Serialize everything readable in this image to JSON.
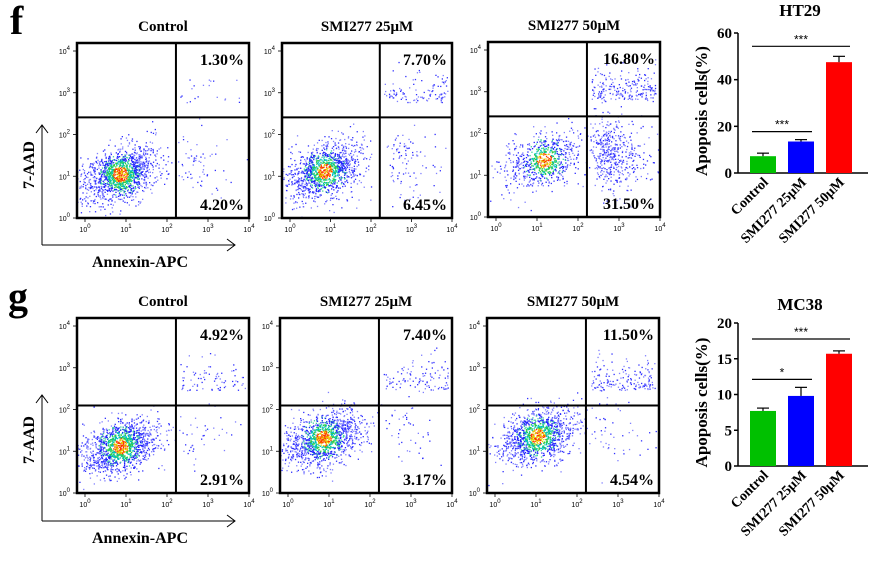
{
  "figure": {
    "panels": [
      {
        "label": "f",
        "cell_line": "HT29"
      },
      {
        "label": "g",
        "cell_line": "MC38"
      }
    ],
    "flow_axis": {
      "x_label": "Annexin-APC",
      "y_label": "7-AAD",
      "ticks": [
        "10^0",
        "10^1",
        "10^2",
        "10^3",
        "10^4"
      ]
    }
  },
  "chart_data": [
    {
      "type": "scatter",
      "panel": "f",
      "title": "Control",
      "xlabel": "Annexin-APC",
      "ylabel": "7-AAD",
      "scale": "log",
      "xlim": [
        1,
        10000
      ],
      "ylim": [
        1,
        10000
      ],
      "gate": {
        "x": 200,
        "y": 200
      },
      "quadrants": {
        "upper_right": "1.30%",
        "lower_right": "4.20%"
      },
      "population_center": [
        10,
        10
      ]
    },
    {
      "type": "scatter",
      "panel": "f",
      "title": "SMI277 25μM",
      "xlabel": "Annexin-APC",
      "ylabel": "7-AAD",
      "scale": "log",
      "xlim": [
        1,
        10000
      ],
      "ylim": [
        1,
        10000
      ],
      "gate": {
        "x": 200,
        "y": 200
      },
      "quadrants": {
        "upper_right": "7.70%",
        "lower_right": "6.45%"
      },
      "population_center": [
        10,
        12
      ]
    },
    {
      "type": "scatter",
      "panel": "f",
      "title": "SMI277 50μM",
      "xlabel": "Annexin-APC",
      "ylabel": "7-AAD",
      "scale": "log",
      "xlim": [
        1,
        10000
      ],
      "ylim": [
        1,
        10000
      ],
      "gate": {
        "x": 200,
        "y": 200
      },
      "quadrants": {
        "upper_right": "16.80%",
        "lower_right": "31.50%"
      },
      "population_center": [
        20,
        20
      ]
    },
    {
      "type": "bar",
      "panel": "f",
      "title": "HT29",
      "xlabel": "",
      "ylabel": "Apoposis cells(%)",
      "categories": [
        "Control",
        "SMI277 25μM",
        "SMI277 50μM"
      ],
      "values": [
        7.2,
        13.5,
        47.5
      ],
      "errors": [
        1.3,
        0.8,
        2.5
      ],
      "colors": [
        "#00c000",
        "#0000ff",
        "#ff0000"
      ],
      "ylim": [
        0,
        60
      ],
      "yticks": [
        0,
        20,
        40,
        60
      ],
      "significance": [
        {
          "between": [
            0,
            1
          ],
          "label": "***"
        },
        {
          "between": [
            0,
            2
          ],
          "label": "***"
        }
      ]
    },
    {
      "type": "scatter",
      "panel": "g",
      "title": "Control",
      "xlabel": "Annexin-APC",
      "ylabel": "7-AAD",
      "scale": "log",
      "xlim": [
        1,
        10000
      ],
      "ylim": [
        1,
        10000
      ],
      "gate": {
        "x": 200,
        "y": 100
      },
      "quadrants": {
        "upper_right": "4.92%",
        "lower_right": "2.91%"
      },
      "population_center": [
        10,
        12
      ]
    },
    {
      "type": "scatter",
      "panel": "g",
      "title": "SMI277 25μM",
      "xlabel": "Annexin-APC",
      "ylabel": "7-AAD",
      "scale": "log",
      "xlim": [
        1,
        10000
      ],
      "ylim": [
        1,
        10000
      ],
      "gate": {
        "x": 200,
        "y": 100
      },
      "quadrants": {
        "upper_right": "7.40%",
        "lower_right": "3.17%"
      },
      "population_center": [
        10,
        18
      ]
    },
    {
      "type": "scatter",
      "panel": "g",
      "title": "SMI277 50μM",
      "xlabel": "Annexin-APC",
      "ylabel": "7-AAD",
      "scale": "log",
      "xlim": [
        1,
        10000
      ],
      "ylim": [
        1,
        10000
      ],
      "gate": {
        "x": 200,
        "y": 100
      },
      "quadrants": {
        "upper_right": "11.50%",
        "lower_right": "4.54%"
      },
      "population_center": [
        15,
        20
      ]
    },
    {
      "type": "bar",
      "panel": "g",
      "title": "MC38",
      "xlabel": "",
      "ylabel": "Apoposis cells(%)",
      "categories": [
        "Control",
        "SMI277 25μM",
        "SMI277 50μM"
      ],
      "values": [
        7.7,
        9.8,
        15.7
      ],
      "errors": [
        0.4,
        1.2,
        0.4
      ],
      "colors": [
        "#00c000",
        "#0000ff",
        "#ff0000"
      ],
      "ylim": [
        0,
        20
      ],
      "yticks": [
        0,
        5,
        10,
        15,
        20
      ],
      "significance": [
        {
          "between": [
            0,
            1
          ],
          "label": "*"
        },
        {
          "between": [
            0,
            2
          ],
          "label": "***"
        }
      ]
    }
  ]
}
